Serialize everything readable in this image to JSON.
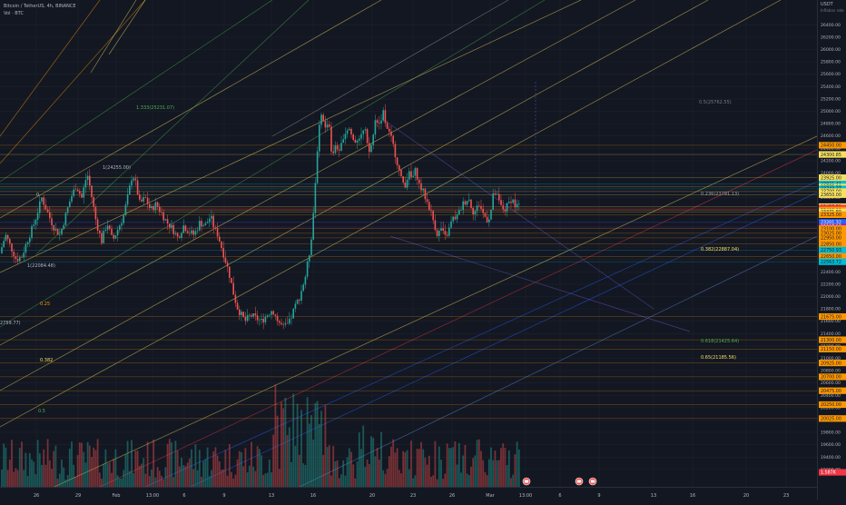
{
  "legend": {
    "symbol": "Bitcoin / TetherUS, 4h, BINANCE",
    "volume": "Vol · BTC"
  },
  "price_scale": {
    "currency": "USDT",
    "currency_sub": "Inflation rate",
    "ticks": [
      "26400.00",
      "26200.00",
      "26000.00",
      "25800.00",
      "25600.00",
      "25400.00",
      "25200.00",
      "25000.00",
      "24800.00",
      "24600.00",
      "24400.00",
      "24200.00",
      "24000.00",
      "23800.00",
      "23600.00",
      "23400.00",
      "23200.00",
      "23000.00",
      "22800.00",
      "22600.00",
      "22400.00",
      "22200.00",
      "22000.00",
      "21800.00",
      "21600.00",
      "21400.00",
      "21200.00",
      "21000.00",
      "20800.00",
      "20600.00",
      "20400.00",
      "20200.00",
      "20000.00",
      "19800.00",
      "19600.00",
      "19400.00",
      "19200.00"
    ],
    "badges": [
      {
        "text": "24450.00",
        "color": "#ff9800",
        "price": 24450
      },
      {
        "text": "24300.85",
        "color": "#f6e05e",
        "price": 24300.85
      },
      {
        "text": "23925.00",
        "color": "#f6e05e",
        "price": 23925
      },
      {
        "text": "23821.41",
        "color": "#00bcd4",
        "price": 23821.41
      },
      {
        "text": "23775.00",
        "color": "#f6e05e",
        "price": 23775
      },
      {
        "text": "23743.37",
        "color": "#00bcd4",
        "price": 23743.37
      },
      {
        "text": "23700.00",
        "color": "#f6e05e",
        "price": 23700
      },
      {
        "text": "23650.00",
        "color": "#f6e05e",
        "price": 23650
      },
      {
        "text": "23455.52",
        "color": "#f6e05e",
        "price": 23455.52
      },
      {
        "text": "23432.49",
        "color": "#f23645",
        "price": 23432.49
      },
      {
        "text": "23412.28",
        "color": "#f23645",
        "price": 23412.28
      },
      {
        "text": "23400.00",
        "color": "#ff9800",
        "price": 23400
      },
      {
        "text": "23371.80",
        "color": "#f6e05e",
        "price": 23371.8
      },
      {
        "text": "23325.00",
        "color": "#ff9800",
        "price": 23325
      },
      {
        "text": "23201.32",
        "color": "#2962ff",
        "price": 23201.32
      },
      {
        "text": "23125.18",
        "color": "#9c27b0",
        "price": 23125.18
      },
      {
        "text": "23100.00",
        "color": "#ff9800",
        "price": 23100
      },
      {
        "text": "23025.00",
        "color": "#ff9800",
        "price": 23025
      },
      {
        "text": "22950.00",
        "color": "#ff9800",
        "price": 22950
      },
      {
        "text": "22850.00",
        "color": "#ff9800",
        "price": 22850
      },
      {
        "text": "22750.93",
        "color": "#00bcd4",
        "price": 22750.93
      },
      {
        "text": "22650.00",
        "color": "#ff9800",
        "price": 22650
      },
      {
        "text": "22563.72",
        "color": "#00bcd4",
        "price": 22563.72
      },
      {
        "text": "21675.00",
        "color": "#ff9800",
        "price": 21675
      },
      {
        "text": "21300.00",
        "color": "#ff9800",
        "price": 21300
      },
      {
        "text": "21150.00",
        "color": "#ff9800",
        "price": 21150
      },
      {
        "text": "20925.00",
        "color": "#ff9800",
        "price": 20925
      },
      {
        "text": "20700.00",
        "color": "#ff9800",
        "price": 20700
      },
      {
        "text": "20475.00",
        "color": "#ff9800",
        "price": 20475
      },
      {
        "text": "20250.00",
        "color": "#ff9800",
        "price": 20250
      },
      {
        "text": "20025.00",
        "color": "#ff9800",
        "price": 20025
      },
      {
        "text": "1.587K",
        "color": "#f23645",
        "price": 19154
      }
    ]
  },
  "time_scale": {
    "ticks": [
      {
        "label": "26",
        "x": 40
      },
      {
        "label": "29",
        "x": 86
      },
      {
        "label": "Feb",
        "x": 128
      },
      {
        "label": "13:00",
        "x": 168
      },
      {
        "label": "6",
        "x": 203
      },
      {
        "label": "9",
        "x": 247
      },
      {
        "label": "13",
        "x": 299
      },
      {
        "label": "16",
        "x": 345
      },
      {
        "label": "20",
        "x": 410
      },
      {
        "label": "23",
        "x": 455
      },
      {
        "label": "26",
        "x": 498
      },
      {
        "label": "Mar",
        "x": 540
      },
      {
        "label": "13:00",
        "x": 579
      },
      {
        "label": "6",
        "x": 617
      },
      {
        "label": "9",
        "x": 660
      },
      {
        "label": "13",
        "x": 720
      },
      {
        "label": "16",
        "x": 763
      },
      {
        "label": "20",
        "x": 822
      },
      {
        "label": "23",
        "x": 866
      }
    ]
  },
  "annotations": [
    {
      "text": "1.333(25231.07)",
      "color": "#4caf50"
    },
    {
      "text": "1(24255.00)",
      "color": "#b2b5be"
    },
    {
      "text": "0",
      "color": "#b2b5be"
    },
    {
      "text": "1(22084.48)",
      "color": "#b2b5be"
    },
    {
      "text": "0.25",
      "color": "#ff9800"
    },
    {
      "text": "2759.77)",
      "color": "#b2b5be"
    },
    {
      "text": "0.382",
      "color": "#f6e05e"
    },
    {
      "text": "0.5",
      "color": "#4caf50"
    },
    {
      "text": "0.236(23791.13)",
      "color": "#9e9e9e"
    },
    {
      "text": "0.382(22887.04)",
      "color": "#f6e05e"
    },
    {
      "text": "0.618(21425.64)",
      "color": "#4caf50"
    },
    {
      "text": "0.65(21185.56)",
      "color": "#f6e05e"
    },
    {
      "text": "0.5(25762.55)",
      "color": "#787b86"
    }
  ],
  "chart_data": {
    "type": "candlestick",
    "symbol": "BTCUSDT",
    "exchange": "BINANCE",
    "interval": "4h",
    "ylim": [
      19154,
      26655
    ],
    "x_range": [
      "Jan 24",
      "Mar 24"
    ],
    "x_ticks": [
      "26",
      "29",
      "Feb",
      "13:00",
      "6",
      "9",
      "13",
      "16",
      "20",
      "23",
      "26",
      "Mar",
      "13:00",
      "6",
      "9",
      "13",
      "16",
      "20",
      "23"
    ],
    "waypoints": [
      [
        0,
        22700
      ],
      [
        6,
        23000
      ],
      [
        12,
        22800
      ],
      [
        18,
        22600
      ],
      [
        24,
        22650
      ],
      [
        30,
        22900
      ],
      [
        38,
        23200
      ],
      [
        46,
        23600
      ],
      [
        54,
        23300
      ],
      [
        60,
        23100
      ],
      [
        66,
        23000
      ],
      [
        72,
        23300
      ],
      [
        78,
        23600
      ],
      [
        84,
        23800
      ],
      [
        90,
        23600
      ],
      [
        96,
        24000
      ],
      [
        100,
        23700
      ],
      [
        106,
        23200
      ],
      [
        112,
        22900
      ],
      [
        118,
        23200
      ],
      [
        124,
        22900
      ],
      [
        130,
        23100
      ],
      [
        136,
        23300
      ],
      [
        142,
        23700
      ],
      [
        146,
        24000
      ],
      [
        150,
        23800
      ],
      [
        154,
        23500
      ],
      [
        160,
        23600
      ],
      [
        166,
        23400
      ],
      [
        172,
        23500
      ],
      [
        178,
        23350
      ],
      [
        184,
        23200
      ],
      [
        190,
        23100
      ],
      [
        196,
        22950
      ],
      [
        202,
        23150
      ],
      [
        208,
        23050
      ],
      [
        214,
        23000
      ],
      [
        220,
        23200
      ],
      [
        226,
        23150
      ],
      [
        232,
        23300
      ],
      [
        236,
        23100
      ],
      [
        240,
        23000
      ],
      [
        246,
        22700
      ],
      [
        252,
        22400
      ],
      [
        258,
        22000
      ],
      [
        262,
        21800
      ],
      [
        266,
        21700
      ],
      [
        270,
        21600
      ],
      [
        276,
        21700
      ],
      [
        282,
        21650
      ],
      [
        288,
        21600
      ],
      [
        294,
        21700
      ],
      [
        300,
        21800
      ],
      [
        306,
        21600
      ],
      [
        312,
        21500
      ],
      [
        318,
        21550
      ],
      [
        324,
        21800
      ],
      [
        330,
        22000
      ],
      [
        336,
        22300
      ],
      [
        342,
        22800
      ],
      [
        346,
        23500
      ],
      [
        350,
        24500
      ],
      [
        354,
        25000
      ],
      [
        358,
        24700
      ],
      [
        362,
        24900
      ],
      [
        366,
        24200
      ],
      [
        370,
        24500
      ],
      [
        374,
        24300
      ],
      [
        378,
        24600
      ],
      [
        384,
        24750
      ],
      [
        390,
        24500
      ],
      [
        396,
        24600
      ],
      [
        402,
        24700
      ],
      [
        406,
        24300
      ],
      [
        410,
        24500
      ],
      [
        414,
        24900
      ],
      [
        418,
        24800
      ],
      [
        422,
        25000
      ],
      [
        426,
        24700
      ],
      [
        430,
        24600
      ],
      [
        434,
        24400
      ],
      [
        438,
        24150
      ],
      [
        442,
        23900
      ],
      [
        446,
        23800
      ],
      [
        450,
        24000
      ],
      [
        454,
        23900
      ],
      [
        458,
        24050
      ],
      [
        462,
        23800
      ],
      [
        466,
        23700
      ],
      [
        470,
        23550
      ],
      [
        474,
        23400
      ],
      [
        478,
        23200
      ],
      [
        482,
        23000
      ],
      [
        486,
        23100
      ],
      [
        490,
        22950
      ],
      [
        494,
        23050
      ],
      [
        498,
        23250
      ],
      [
        504,
        23300
      ],
      [
        510,
        23500
      ],
      [
        516,
        23600
      ],
      [
        522,
        23350
      ],
      [
        528,
        23500
      ],
      [
        532,
        23350
      ],
      [
        536,
        23250
      ],
      [
        540,
        23300
      ],
      [
        544,
        23700
      ],
      [
        548,
        23600
      ],
      [
        552,
        23450
      ],
      [
        556,
        23400
      ],
      [
        560,
        23500
      ],
      [
        564,
        23600
      ],
      [
        568,
        23450
      ],
      [
        572,
        23500
      ]
    ],
    "volume": {
      "max_label": "1.587K"
    },
    "drawings": "pitchfork fans, fibonacci retracements, horizontal levels, trend lines"
  }
}
